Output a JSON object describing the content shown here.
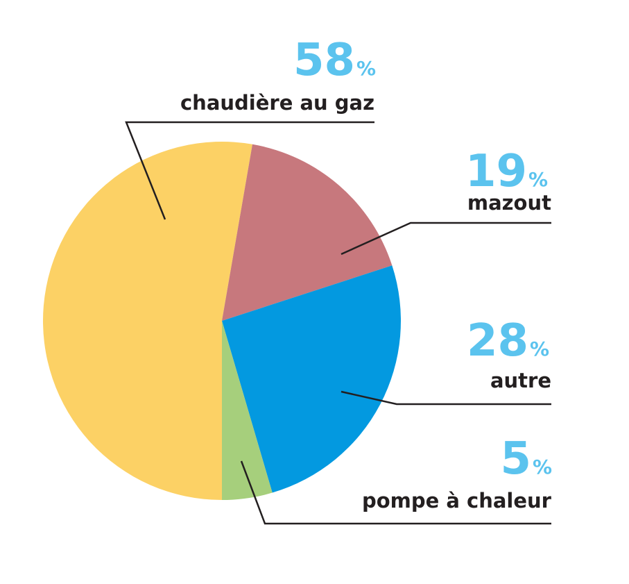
{
  "chart_data": {
    "type": "pie",
    "title": "",
    "categories": [
      "chaudière au gaz",
      "mazout",
      "autre",
      "pompe à chaleur"
    ],
    "values": [
      58,
      19,
      28,
      5
    ],
    "value_labels": [
      "58",
      "19",
      "28",
      "5"
    ],
    "unit": "%",
    "colors": [
      "#FCD165",
      "#C7787D",
      "#0399E0",
      "#A6CF7C"
    ],
    "label_color": "#5BC3EE",
    "text_color": "#231F20",
    "legend": "none",
    "slice_order": "clockwise from 6 o'clock: chaudière au gaz, mazout, autre, pompe à chaleur"
  }
}
